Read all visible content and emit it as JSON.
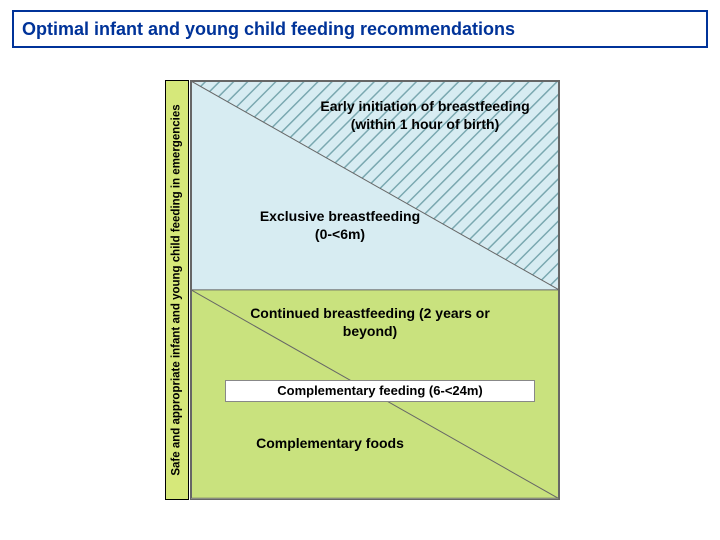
{
  "title": "Optimal infant and young child feeding recommendations",
  "title_color": "#003399",
  "title_border_color": "#003399",
  "title_background": "#ffffff",
  "title_fontsize": 18,
  "vertical_label": "Safe and appropriate infant and young child feeding in emergencies",
  "vertical_label_bg": "#d6e87a",
  "vertical_label_color": "#000000",
  "diagram": {
    "top_fill": "#d7ecf2",
    "bottom_fill": "#c9e27e",
    "hatch_color": "#7aa8b0",
    "diag_line_color": "#666666",
    "border_color": "#666666",
    "labels": {
      "early": "Early initiation of breastfeeding (within 1 hour of birth)",
      "exclusive": "Exclusive breastfeeding (0-<6m)",
      "continued": "Continued breastfeeding (2 years or beyond)",
      "comp_feeding": "Complementary feeding (6-<24m)",
      "comp_foods": "Complementary foods"
    },
    "label_fontsize": 14,
    "label_fontsize_small": 13
  }
}
